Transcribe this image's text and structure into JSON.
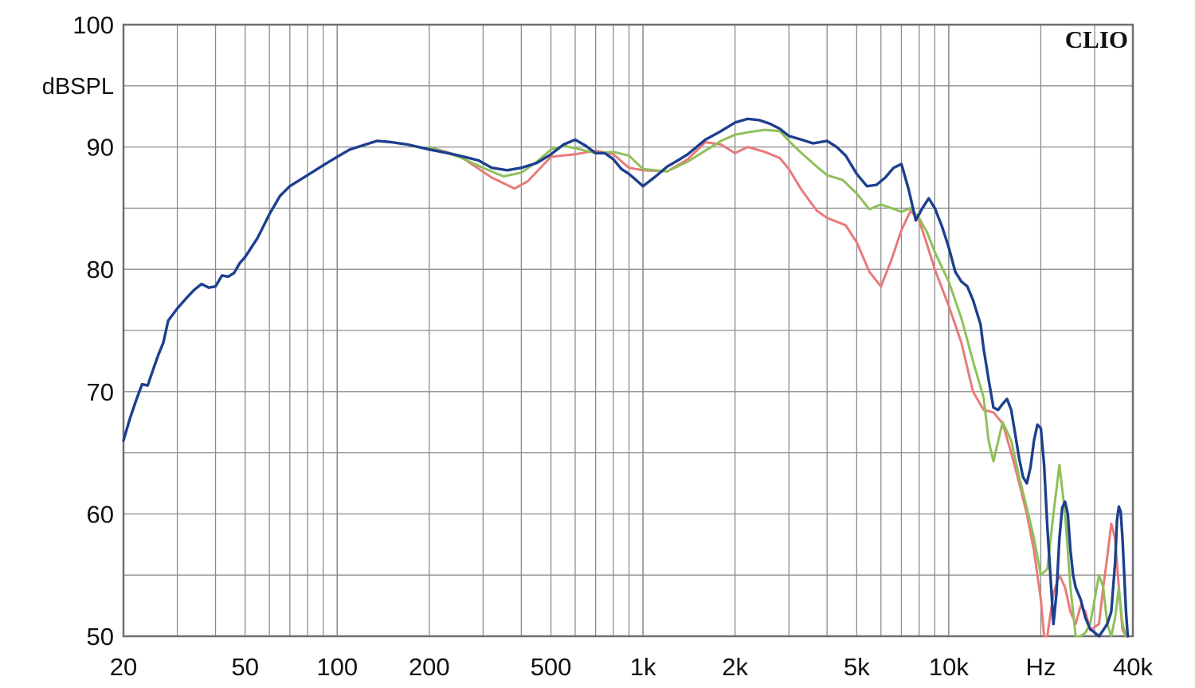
{
  "chart_data": {
    "type": "line",
    "brand": "CLIO",
    "ylabel": "dBSPL",
    "xunit": "Hz",
    "xscale": "log",
    "xlim": [
      20,
      40000
    ],
    "ylim": [
      50,
      100
    ],
    "grid": true,
    "x_ticks": [
      {
        "value": 20,
        "label": "20"
      },
      {
        "value": 50,
        "label": "50"
      },
      {
        "value": 100,
        "label": "100"
      },
      {
        "value": 200,
        "label": "200"
      },
      {
        "value": 500,
        "label": "500"
      },
      {
        "value": 1000,
        "label": "1k"
      },
      {
        "value": 2000,
        "label": "2k"
      },
      {
        "value": 5000,
        "label": "5k"
      },
      {
        "value": 10000,
        "label": "10k"
      },
      {
        "value": 20000,
        "label": "Hz"
      },
      {
        "value": 40000,
        "label": "40k"
      }
    ],
    "y_ticks": [
      {
        "value": 100,
        "label": "100"
      },
      {
        "value": 90,
        "label": "90"
      },
      {
        "value": 80,
        "label": "80"
      },
      {
        "value": 70,
        "label": "70"
      },
      {
        "value": 60,
        "label": "60"
      },
      {
        "value": 50,
        "label": "50"
      }
    ],
    "series": [
      {
        "color": "#e97a7a",
        "points": [
          [
            200,
            90
          ],
          [
            250,
            89.3
          ],
          [
            320,
            87.5
          ],
          [
            380,
            86.6
          ],
          [
            420,
            87.2
          ],
          [
            500,
            89.2
          ],
          [
            600,
            89.4
          ],
          [
            700,
            89.7
          ],
          [
            800,
            89.4
          ],
          [
            900,
            88.3
          ],
          [
            1000,
            88.1
          ],
          [
            1200,
            88
          ],
          [
            1400,
            89
          ],
          [
            1600,
            90.4
          ],
          [
            1800,
            90.2
          ],
          [
            2000,
            89.5
          ],
          [
            2200,
            90
          ],
          [
            2500,
            89.6
          ],
          [
            2800,
            89.1
          ],
          [
            3000,
            88.2
          ],
          [
            3300,
            86.5
          ],
          [
            3700,
            84.8
          ],
          [
            4000,
            84.2
          ],
          [
            4600,
            83.6
          ],
          [
            5000,
            82.2
          ],
          [
            5500,
            79.8
          ],
          [
            6000,
            78.6
          ],
          [
            6500,
            80.8
          ],
          [
            7000,
            83.2
          ],
          [
            7500,
            84.8
          ],
          [
            8000,
            84
          ],
          [
            8500,
            82
          ],
          [
            9000,
            80
          ],
          [
            10000,
            77
          ],
          [
            11000,
            74
          ],
          [
            12000,
            70
          ],
          [
            13000,
            68.5
          ],
          [
            14000,
            68.3
          ],
          [
            15000,
            67.4
          ],
          [
            16000,
            65
          ],
          [
            17000,
            62.5
          ],
          [
            18000,
            60
          ],
          [
            19000,
            57
          ],
          [
            20000,
            53
          ],
          [
            20500,
            50
          ],
          [
            21000,
            50
          ],
          [
            22000,
            53.5
          ],
          [
            23000,
            55
          ],
          [
            24000,
            54
          ],
          [
            25000,
            52
          ],
          [
            26000,
            51
          ],
          [
            27000,
            52.5
          ],
          [
            28000,
            52
          ],
          [
            29000,
            50.5
          ],
          [
            31000,
            51
          ],
          [
            32000,
            54
          ],
          [
            33000,
            56.5
          ],
          [
            34000,
            59.2
          ],
          [
            35000,
            58
          ],
          [
            36000,
            54
          ],
          [
            37000,
            50.5
          ],
          [
            38000,
            50
          ]
        ]
      },
      {
        "color": "#8fc05b",
        "points": [
          [
            200,
            90
          ],
          [
            250,
            89.2
          ],
          [
            300,
            88.3
          ],
          [
            350,
            87.6
          ],
          [
            400,
            87.9
          ],
          [
            450,
            88.8
          ],
          [
            500,
            89.8
          ],
          [
            550,
            90.1
          ],
          [
            600,
            89.9
          ],
          [
            700,
            89.5
          ],
          [
            800,
            89.6
          ],
          [
            900,
            89.3
          ],
          [
            1000,
            88.2
          ],
          [
            1200,
            88
          ],
          [
            1400,
            88.8
          ],
          [
            1600,
            89.7
          ],
          [
            1800,
            90.5
          ],
          [
            2000,
            91
          ],
          [
            2200,
            91.2
          ],
          [
            2500,
            91.4
          ],
          [
            2800,
            91.3
          ],
          [
            3000,
            90.5
          ],
          [
            3300,
            89.5
          ],
          [
            3700,
            88.4
          ],
          [
            4000,
            87.7
          ],
          [
            4500,
            87.3
          ],
          [
            5000,
            86.2
          ],
          [
            5500,
            84.9
          ],
          [
            6000,
            85.3
          ],
          [
            6500,
            85
          ],
          [
            7000,
            84.7
          ],
          [
            7500,
            85
          ],
          [
            8000,
            84.2
          ],
          [
            8500,
            83
          ],
          [
            9000,
            81.4
          ],
          [
            10000,
            79
          ],
          [
            11000,
            76
          ],
          [
            12000,
            72.5
          ],
          [
            13000,
            69.5
          ],
          [
            13500,
            66
          ],
          [
            14000,
            64.3
          ],
          [
            15000,
            67.5
          ],
          [
            16000,
            66
          ],
          [
            17000,
            63
          ],
          [
            18000,
            60.5
          ],
          [
            19000,
            58
          ],
          [
            20000,
            55
          ],
          [
            21000,
            55.5
          ],
          [
            22000,
            60
          ],
          [
            23000,
            64
          ],
          [
            24000,
            60
          ],
          [
            25000,
            54
          ],
          [
            26000,
            50
          ],
          [
            27000,
            50
          ],
          [
            28000,
            50.3
          ],
          [
            29000,
            51
          ],
          [
            30000,
            53
          ],
          [
            31000,
            55
          ],
          [
            32000,
            54
          ],
          [
            33000,
            51
          ],
          [
            34000,
            50
          ],
          [
            35000,
            51.5
          ],
          [
            36000,
            54
          ],
          [
            37000,
            51
          ],
          [
            38000,
            50
          ]
        ]
      },
      {
        "color": "#1d3f8e",
        "points": [
          [
            20,
            66
          ],
          [
            21,
            67.8
          ],
          [
            22,
            69.3
          ],
          [
            23,
            70.6
          ],
          [
            24,
            70.5
          ],
          [
            25,
            71.8
          ],
          [
            26,
            73
          ],
          [
            27,
            74
          ],
          [
            28,
            75.8
          ],
          [
            30,
            76.8
          ],
          [
            32,
            77.6
          ],
          [
            34,
            78.3
          ],
          [
            36,
            78.8
          ],
          [
            38,
            78.5
          ],
          [
            40,
            78.6
          ],
          [
            42,
            79.5
          ],
          [
            44,
            79.4
          ],
          [
            46,
            79.7
          ],
          [
            48,
            80.5
          ],
          [
            50,
            81
          ],
          [
            55,
            82.6
          ],
          [
            60,
            84.5
          ],
          [
            65,
            86
          ],
          [
            70,
            86.8
          ],
          [
            80,
            87.7
          ],
          [
            90,
            88.5
          ],
          [
            100,
            89.2
          ],
          [
            110,
            89.8
          ],
          [
            120,
            90.1
          ],
          [
            135,
            90.5
          ],
          [
            150,
            90.4
          ],
          [
            170,
            90.2
          ],
          [
            200,
            89.8
          ],
          [
            230,
            89.5
          ],
          [
            260,
            89.2
          ],
          [
            290,
            88.9
          ],
          [
            320,
            88.3
          ],
          [
            360,
            88.1
          ],
          [
            400,
            88.3
          ],
          [
            450,
            88.7
          ],
          [
            500,
            89.4
          ],
          [
            550,
            90.2
          ],
          [
            600,
            90.6
          ],
          [
            650,
            90.1
          ],
          [
            700,
            89.5
          ],
          [
            750,
            89.5
          ],
          [
            800,
            89
          ],
          [
            850,
            88.2
          ],
          [
            900,
            87.8
          ],
          [
            950,
            87.3
          ],
          [
            1000,
            86.8
          ],
          [
            1100,
            87.6
          ],
          [
            1200,
            88.4
          ],
          [
            1300,
            88.9
          ],
          [
            1400,
            89.4
          ],
          [
            1600,
            90.6
          ],
          [
            1800,
            91.3
          ],
          [
            2000,
            92
          ],
          [
            2200,
            92.3
          ],
          [
            2400,
            92.2
          ],
          [
            2600,
            91.9
          ],
          [
            2800,
            91.5
          ],
          [
            3000,
            90.9
          ],
          [
            3300,
            90.6
          ],
          [
            3600,
            90.3
          ],
          [
            4000,
            90.5
          ],
          [
            4300,
            90
          ],
          [
            4600,
            89.3
          ],
          [
            5000,
            87.8
          ],
          [
            5400,
            86.8
          ],
          [
            5800,
            86.9
          ],
          [
            6200,
            87.5
          ],
          [
            6600,
            88.3
          ],
          [
            7000,
            88.6
          ],
          [
            7400,
            86.5
          ],
          [
            7800,
            84
          ],
          [
            8200,
            85
          ],
          [
            8600,
            85.8
          ],
          [
            9000,
            85
          ],
          [
            9500,
            83.5
          ],
          [
            10000,
            81.8
          ],
          [
            10500,
            79.8
          ],
          [
            11000,
            79
          ],
          [
            11500,
            78.6
          ],
          [
            12000,
            77.5
          ],
          [
            12700,
            75.5
          ],
          [
            13000,
            73.5
          ],
          [
            13500,
            71
          ],
          [
            14000,
            68.7
          ],
          [
            14500,
            68.5
          ],
          [
            15000,
            69
          ],
          [
            15500,
            69.4
          ],
          [
            16000,
            68.5
          ],
          [
            16500,
            66.5
          ],
          [
            17000,
            64.5
          ],
          [
            17500,
            63
          ],
          [
            18000,
            62.5
          ],
          [
            18500,
            63.8
          ],
          [
            19000,
            66
          ],
          [
            19500,
            67.3
          ],
          [
            20000,
            67
          ],
          [
            20500,
            64
          ],
          [
            21000,
            59
          ],
          [
            21500,
            55
          ],
          [
            22000,
            51
          ],
          [
            22500,
            53.5
          ],
          [
            23000,
            58
          ],
          [
            23500,
            60.5
          ],
          [
            24000,
            61
          ],
          [
            24500,
            60
          ],
          [
            25000,
            57
          ],
          [
            25500,
            55
          ],
          [
            26000,
            54
          ],
          [
            27000,
            53
          ],
          [
            28000,
            51.5
          ],
          [
            29000,
            50.6
          ],
          [
            30000,
            50.3
          ],
          [
            31000,
            50
          ],
          [
            32000,
            50.5
          ],
          [
            33000,
            51
          ],
          [
            34000,
            52
          ],
          [
            35000,
            56
          ],
          [
            35500,
            59.5
          ],
          [
            36000,
            60.6
          ],
          [
            36500,
            60.2
          ],
          [
            37000,
            58
          ],
          [
            38000,
            52
          ],
          [
            38500,
            50
          ]
        ]
      }
    ]
  }
}
